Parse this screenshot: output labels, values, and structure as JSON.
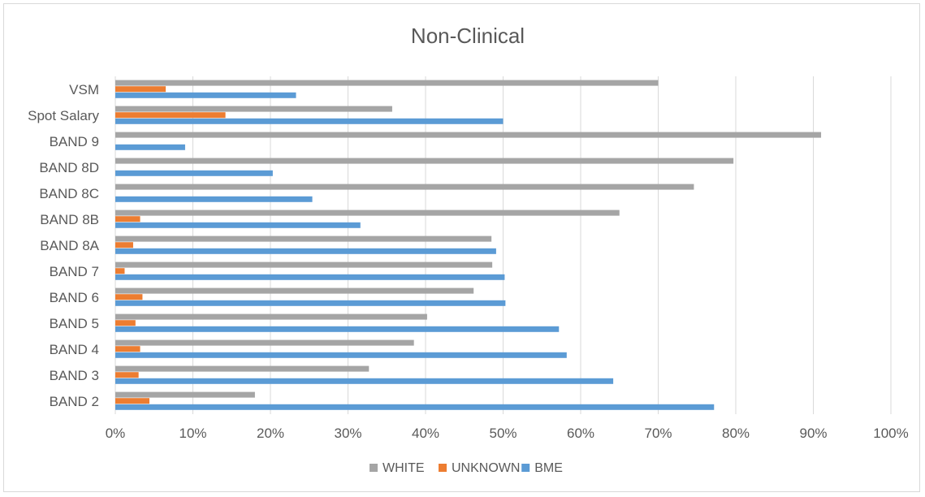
{
  "chart_data": {
    "type": "bar",
    "orientation": "horizontal",
    "title": "Non-Clinical",
    "xlabel": "",
    "ylabel": "",
    "categories": [
      "VSM",
      "Spot Salary",
      "BAND 9",
      "BAND 8D",
      "BAND 8C",
      "BAND 8B",
      "BAND 8A",
      "BAND 7",
      "BAND 6",
      "BAND 5",
      "BAND 4",
      "BAND 3",
      "BAND 2"
    ],
    "series": [
      {
        "name": "WHITE",
        "color": "#a5a5a5",
        "values": [
          0.7,
          0.357,
          0.91,
          0.797,
          0.746,
          0.65,
          0.485,
          0.486,
          0.462,
          0.402,
          0.385,
          0.327,
          0.18
        ]
      },
      {
        "name": "UNKNOWN",
        "color": "#ed7d31",
        "values": [
          0.065,
          0.142,
          0.0,
          0.0,
          0.0,
          0.032,
          0.023,
          0.012,
          0.035,
          0.026,
          0.032,
          0.03,
          0.044
        ]
      },
      {
        "name": "BME",
        "color": "#5b9bd5",
        "values": [
          0.233,
          0.5,
          0.09,
          0.203,
          0.254,
          0.316,
          0.491,
          0.502,
          0.503,
          0.572,
          0.582,
          0.642,
          0.772
        ]
      }
    ],
    "xlim": [
      0,
      1
    ],
    "x_ticks": [
      "0%",
      "10%",
      "20%",
      "30%",
      "40%",
      "50%",
      "60%",
      "70%",
      "80%",
      "90%",
      "100%"
    ],
    "grid": "vertical",
    "legend": {
      "position": "bottom",
      "entries": [
        "WHITE",
        "UNKNOWN",
        "BME"
      ]
    },
    "gridline_color": "#d9d9d9"
  }
}
